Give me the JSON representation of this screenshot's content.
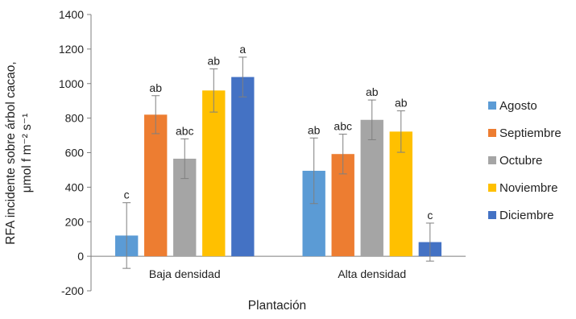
{
  "chart_data": {
    "type": "bar",
    "categories": [
      "Baja densidad",
      "Alta densidad"
    ],
    "xlabel": "Plantación",
    "ylabel_line1": "RFA incidente sobre árbol cacao,",
    "ylabel_line2": "μmol f m⁻² s⁻¹",
    "ylim": [
      -200,
      1400
    ],
    "yticks": [
      -200,
      0,
      200,
      400,
      600,
      800,
      1000,
      1200,
      1400
    ],
    "grid": false,
    "legend_position": "right",
    "series": [
      {
        "name": "Agosto",
        "color": "#5b9bd5",
        "values": [
          120,
          495
        ],
        "error": [
          190,
          190
        ],
        "sig": [
          "c",
          "ab"
        ]
      },
      {
        "name": "Septiembre",
        "color": "#ed7d31",
        "values": [
          820,
          592
        ],
        "error": [
          110,
          115
        ],
        "sig": [
          "ab",
          "abc"
        ]
      },
      {
        "name": "Octubre",
        "color": "#a5a5a5",
        "values": [
          565,
          790
        ],
        "error": [
          115,
          115
        ],
        "sig": [
          "abc",
          "ab"
        ]
      },
      {
        "name": "Noviembre",
        "color": "#ffc000",
        "values": [
          960,
          722
        ],
        "error": [
          125,
          120
        ],
        "sig": [
          "ab",
          "ab"
        ]
      },
      {
        "name": "Diciembre",
        "color": "#4472c4",
        "values": [
          1038,
          82
        ],
        "error": [
          115,
          110
        ],
        "sig": [
          "a",
          "c"
        ]
      }
    ]
  }
}
